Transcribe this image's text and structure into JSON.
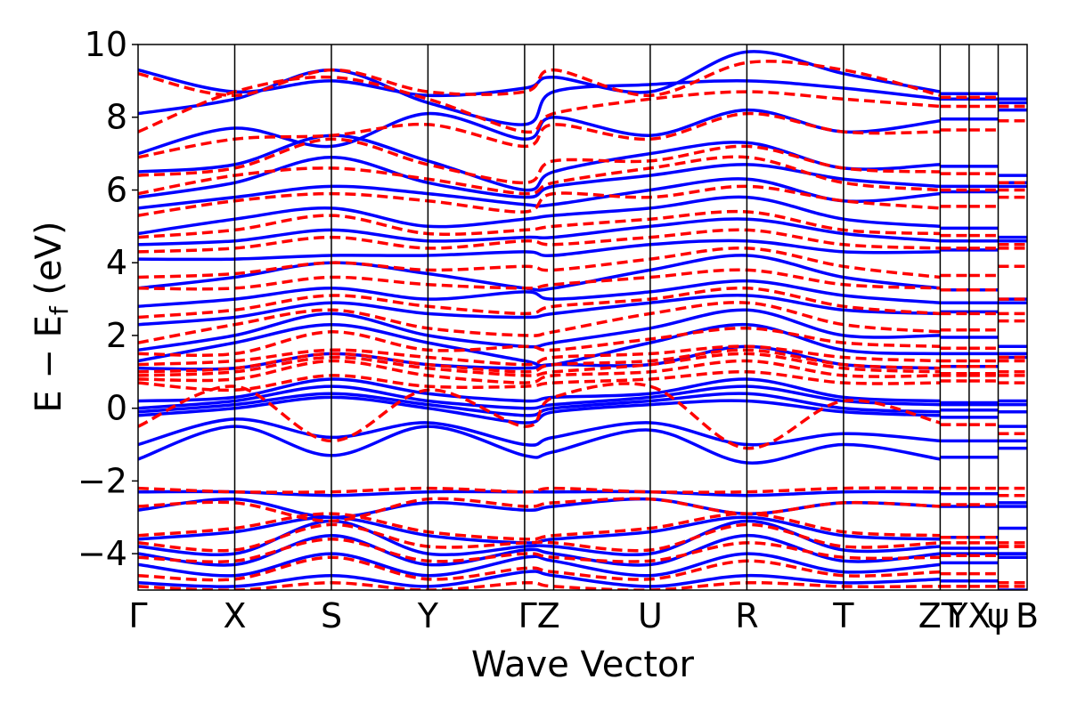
{
  "chart_data": {
    "type": "line",
    "xlabel": "Wave Vector",
    "ylabel_main": "E − E",
    "ylabel_sub": "f",
    "ylabel_unit": " (eV)",
    "ylim": [
      -5,
      10
    ],
    "yticks": [
      10,
      8,
      6,
      4,
      2,
      0,
      -2,
      -4
    ],
    "ytick_labels": [
      "10",
      "8",
      "6",
      "4",
      "2",
      "0",
      "−2",
      "−4"
    ],
    "grid": false,
    "kpoints": [
      {
        "label": "Γ",
        "x": 0.0
      },
      {
        "label": "X",
        "x": 1.0
      },
      {
        "label": "S",
        "x": 2.0
      },
      {
        "label": "Y",
        "x": 3.0
      },
      {
        "label": "ΓZ",
        "x": 4.15
      },
      {
        "label": "U",
        "x": 5.3
      },
      {
        "label": "R",
        "x": 6.3
      },
      {
        "label": "T",
        "x": 7.3
      },
      {
        "label": "ZT",
        "x": 8.3
      },
      {
        "label": "YX",
        "x": 8.6
      },
      {
        "label": "ψ",
        "x": 8.9
      },
      {
        "label": "B",
        "x": 9.2
      }
    ],
    "vlines": [
      1.0,
      2.0,
      3.0,
      4.0,
      4.3,
      5.3,
      6.3,
      7.3,
      8.3,
      8.6,
      8.9
    ],
    "xlim": [
      0,
      9.2
    ],
    "series_style": [
      {
        "color": "#0000ff",
        "dash": "solid"
      },
      {
        "color": "#ff0000",
        "dash": "dashed"
      }
    ],
    "series": [
      {
        "style": 0,
        "bands": [
          [
            9.3,
            8.7,
            9.0,
            8.6,
            8.8,
            9.1,
            8.7,
            9.8,
            9.2,
            8.7
          ],
          [
            8.1,
            8.5,
            9.3,
            8.4,
            7.8,
            8.7,
            8.9,
            9.0,
            8.8,
            8.5
          ],
          [
            7.0,
            7.7,
            7.2,
            8.1,
            7.4,
            8.0,
            7.5,
            8.2,
            7.6,
            7.9
          ],
          [
            6.5,
            6.7,
            7.5,
            6.8,
            6.0,
            6.5,
            7.0,
            7.3,
            6.6,
            6.7
          ],
          [
            5.8,
            6.2,
            6.9,
            6.2,
            5.8,
            6.1,
            6.4,
            6.7,
            6.3,
            6.1
          ],
          [
            5.5,
            5.8,
            6.1,
            5.9,
            5.6,
            5.6,
            6.0,
            6.3,
            5.7,
            5.9
          ],
          [
            4.8,
            5.2,
            5.5,
            5.0,
            5.2,
            5.3,
            5.5,
            5.8,
            5.2,
            5.0
          ],
          [
            4.5,
            4.6,
            4.9,
            4.6,
            4.7,
            4.7,
            5.0,
            5.2,
            4.8,
            4.6
          ],
          [
            4.1,
            4.1,
            4.2,
            4.2,
            4.3,
            4.2,
            4.5,
            4.6,
            4.3,
            4.3
          ],
          [
            3.3,
            3.6,
            4.0,
            3.7,
            3.3,
            3.3,
            3.8,
            4.2,
            3.6,
            3.3
          ],
          [
            2.8,
            3.0,
            3.3,
            3.0,
            3.2,
            3.0,
            3.2,
            3.5,
            3.1,
            2.9
          ],
          [
            2.3,
            2.5,
            2.9,
            2.6,
            2.5,
            2.6,
            2.9,
            3.1,
            2.7,
            2.6
          ],
          [
            1.6,
            2.0,
            2.6,
            2.0,
            1.7,
            1.8,
            2.2,
            2.7,
            2.0,
            2.0
          ],
          [
            1.3,
            1.8,
            2.3,
            1.8,
            1.3,
            1.2,
            1.8,
            2.3,
            1.6,
            1.5
          ],
          [
            1.1,
            1.1,
            1.5,
            1.2,
            1.1,
            1.2,
            1.2,
            1.7,
            1.2,
            1.1
          ],
          [
            0.2,
            0.3,
            0.8,
            0.4,
            0.2,
            0.3,
            0.4,
            0.8,
            0.3,
            0.2
          ],
          [
            0.0,
            0.2,
            0.6,
            0.2,
            0.0,
            0.1,
            0.3,
            0.6,
            0.2,
            0.1
          ],
          [
            -0.1,
            0.1,
            0.4,
            0.1,
            -0.2,
            0.0,
            0.2,
            0.4,
            0.0,
            -0.1
          ],
          [
            -0.2,
            0.0,
            0.3,
            0.0,
            -0.4,
            -0.1,
            0.1,
            0.2,
            -0.1,
            -0.2
          ],
          [
            -1.0,
            -0.3,
            -0.8,
            -0.4,
            -1.0,
            -0.8,
            -0.4,
            -1.0,
            -0.7,
            -0.9
          ],
          [
            -1.4,
            -0.5,
            -1.3,
            -0.5,
            -1.3,
            -1.2,
            -0.6,
            -1.5,
            -1.0,
            -1.4
          ],
          [
            -2.3,
            -2.3,
            -2.4,
            -2.3,
            -2.3,
            -2.3,
            -2.3,
            -2.4,
            -2.3,
            -2.3
          ],
          [
            -2.8,
            -2.5,
            -3.0,
            -2.6,
            -2.8,
            -2.7,
            -2.5,
            -2.9,
            -2.6,
            -2.7
          ],
          [
            -3.6,
            -3.4,
            -3.0,
            -3.5,
            -3.7,
            -3.6,
            -3.4,
            -3.0,
            -3.5,
            -3.6
          ],
          [
            -3.8,
            -4.0,
            -3.1,
            -4.0,
            -3.8,
            -3.8,
            -4.0,
            -3.1,
            -3.9,
            -3.8
          ],
          [
            -4.0,
            -4.3,
            -3.5,
            -4.3,
            -3.9,
            -4.0,
            -4.3,
            -3.5,
            -4.2,
            -4.0
          ],
          [
            -4.3,
            -4.6,
            -4.0,
            -4.6,
            -4.1,
            -4.2,
            -4.6,
            -4.0,
            -4.5,
            -4.3
          ],
          [
            -4.8,
            -4.9,
            -4.6,
            -4.9,
            -4.5,
            -4.6,
            -4.9,
            -4.6,
            -4.8,
            -4.7
          ]
        ]
      },
      {
        "style": 1,
        "bands": [
          [
            9.2,
            8.6,
            9.3,
            8.7,
            8.7,
            9.3,
            8.6,
            9.5,
            9.3,
            8.6
          ],
          [
            7.6,
            8.7,
            9.1,
            8.5,
            7.6,
            8.1,
            8.5,
            8.7,
            8.5,
            8.3
          ],
          [
            6.9,
            7.4,
            7.5,
            7.8,
            7.2,
            7.8,
            7.4,
            8.1,
            7.6,
            7.6
          ],
          [
            6.4,
            6.6,
            7.4,
            6.7,
            6.2,
            6.8,
            6.8,
            7.2,
            6.6,
            6.5
          ],
          [
            5.9,
            6.4,
            6.6,
            6.3,
            5.9,
            6.2,
            6.6,
            6.9,
            6.2,
            6.0
          ],
          [
            5.3,
            5.7,
            5.9,
            5.7,
            5.4,
            5.9,
            5.8,
            6.1,
            5.7,
            5.5
          ],
          [
            4.7,
            4.9,
            5.3,
            4.8,
            4.9,
            5.0,
            5.2,
            5.4,
            4.9,
            4.8
          ],
          [
            4.3,
            4.4,
            4.7,
            4.4,
            4.6,
            4.5,
            4.7,
            4.9,
            4.5,
            4.4
          ],
          [
            3.6,
            3.7,
            4.0,
            3.8,
            3.9,
            3.8,
            4.1,
            4.4,
            3.9,
            3.6
          ],
          [
            3.3,
            3.3,
            3.6,
            3.4,
            3.3,
            3.4,
            3.6,
            3.8,
            3.4,
            3.3
          ],
          [
            2.5,
            2.7,
            3.1,
            2.8,
            2.6,
            2.8,
            3.0,
            3.3,
            2.8,
            2.6
          ],
          [
            1.8,
            2.3,
            2.7,
            2.2,
            2.0,
            2.1,
            2.6,
            2.9,
            2.3,
            2.1
          ],
          [
            1.5,
            1.5,
            2.1,
            1.6,
            1.7,
            1.6,
            1.9,
            2.2,
            1.8,
            1.7
          ],
          [
            1.2,
            1.3,
            1.6,
            1.4,
            1.2,
            1.4,
            1.5,
            1.7,
            1.4,
            1.3
          ],
          [
            1.0,
            1.1,
            1.5,
            1.2,
            1.0,
            1.2,
            1.3,
            1.6,
            1.2,
            1.1
          ],
          [
            0.9,
            1.0,
            1.4,
            1.1,
            0.9,
            1.0,
            1.2,
            1.5,
            1.1,
            1.0
          ],
          [
            0.8,
            0.8,
            1.3,
            0.9,
            0.7,
            0.9,
            1.0,
            1.3,
            0.9,
            0.9
          ],
          [
            0.7,
            0.5,
            0.9,
            0.6,
            0.6,
            0.7,
            0.8,
            1.0,
            0.7,
            0.7
          ],
          [
            -0.5,
            0.6,
            -0.9,
            0.5,
            -0.5,
            0.3,
            0.6,
            -1.1,
            0.2,
            -0.4
          ],
          [
            -2.2,
            -2.3,
            -2.3,
            -2.2,
            -2.3,
            -2.2,
            -2.3,
            -2.3,
            -2.2,
            -2.2
          ],
          [
            -2.7,
            -2.6,
            -3.1,
            -2.5,
            -2.7,
            -2.6,
            -2.5,
            -2.9,
            -2.6,
            -2.7
          ],
          [
            -3.5,
            -3.3,
            -2.9,
            -3.4,
            -3.6,
            -3.5,
            -3.3,
            -2.9,
            -3.4,
            -3.5
          ],
          [
            -3.7,
            -3.9,
            -3.2,
            -3.8,
            -3.7,
            -3.7,
            -3.9,
            -3.2,
            -3.8,
            -3.7
          ],
          [
            -4.1,
            -4.2,
            -3.6,
            -4.2,
            -4.0,
            -4.1,
            -4.2,
            -3.7,
            -4.1,
            -4.1
          ],
          [
            -4.6,
            -4.7,
            -4.1,
            -4.7,
            -4.4,
            -4.5,
            -4.7,
            -4.2,
            -4.6,
            -4.5
          ],
          [
            -4.9,
            -5.0,
            -4.8,
            -5.0,
            -4.8,
            -4.9,
            -5.0,
            -4.8,
            -4.9,
            -4.9
          ]
        ]
      }
    ]
  }
}
